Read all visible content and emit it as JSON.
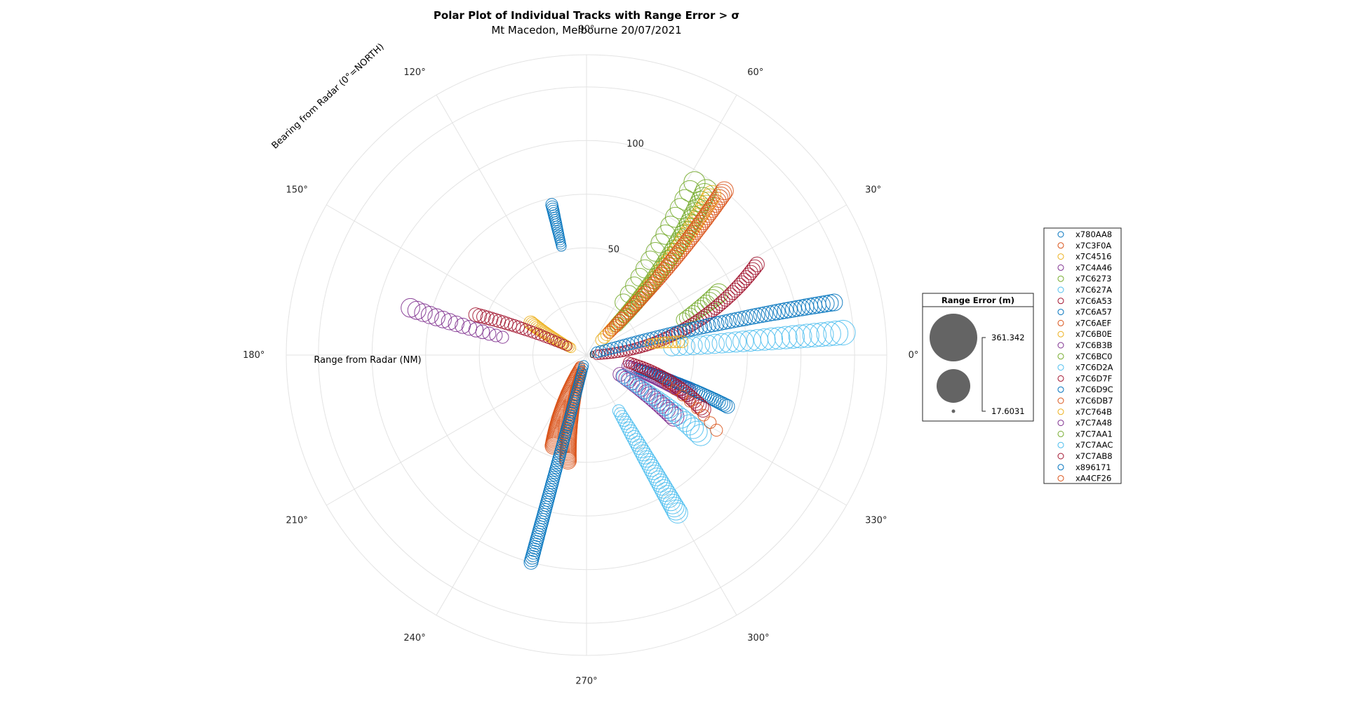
{
  "chart_data": {
    "type": "scatter",
    "subtype": "polar-bubble",
    "title": "Polar Plot of Individual Tracks with Range Error > σ",
    "subtitle": "Mt Macedon, Melbourne 20/07/2021",
    "theta_label": "Bearing from Radar (0°=NORTH)",
    "r_label": "Range from Radar (NM)",
    "theta_ticks": [
      "0°",
      "30°",
      "60°",
      "90°",
      "120°",
      "150°",
      "180°",
      "210°",
      "240°",
      "270°",
      "300°",
      "330°"
    ],
    "theta_tick_values": [
      0,
      30,
      60,
      90,
      120,
      150,
      180,
      210,
      240,
      270,
      300,
      330
    ],
    "r_ticks": [
      "0",
      "50",
      "100"
    ],
    "r_tick_values": [
      0,
      50,
      100
    ],
    "rlim": [
      0,
      140
    ],
    "grid": true,
    "legend_position": "right",
    "bubble_legend": {
      "title": "Range Error (m)",
      "max_label": "361.342",
      "min_label": "17.6031",
      "max_value": 361.342,
      "min_value": 17.6031
    },
    "series": [
      {
        "name": "x780AA8",
        "color": "#0072BD",
        "theta_start": 103,
        "theta_end": 103,
        "r_start": 52,
        "r_end": 72,
        "count": 20,
        "err_start": 40,
        "err_end": 60
      },
      {
        "name": "x7C3F0A",
        "color": "#D95319",
        "theta_start": 252,
        "theta_end": 260,
        "r_start": 8,
        "r_end": 50,
        "count": 60,
        "err_start": 40,
        "err_end": 120
      },
      {
        "name": "x7C4516",
        "color": "#EDB120",
        "theta_start": 155,
        "theta_end": 150,
        "r_start": 8,
        "r_end": 30,
        "count": 25,
        "err_start": 40,
        "err_end": 80
      },
      {
        "name": "x7C4A46",
        "color": "#7E2F8E",
        "theta_start": 345,
        "theta_end": 340,
        "r_start": 20,
        "r_end": 50,
        "count": 30,
        "err_start": 60,
        "err_end": 150
      },
      {
        "name": "x7C6273",
        "color": "#77AC30",
        "theta_start": 20,
        "theta_end": 25,
        "r_start": 48,
        "r_end": 68,
        "count": 12,
        "err_start": 80,
        "err_end": 160
      },
      {
        "name": "x7C627A",
        "color": "#4DBEEE",
        "theta_start": 300,
        "theta_end": 300,
        "r_start": 30,
        "r_end": 85,
        "count": 35,
        "err_start": 60,
        "err_end": 180
      },
      {
        "name": "x7C6A53",
        "color": "#A2142F",
        "theta_start": 155,
        "theta_end": 160,
        "r_start": 10,
        "r_end": 55,
        "count": 25,
        "err_start": 40,
        "err_end": 80
      },
      {
        "name": "x7C6A57",
        "color": "#0072BD",
        "theta_start": 345,
        "theta_end": 340,
        "r_start": 25,
        "r_end": 70,
        "count": 40,
        "err_start": 40,
        "err_end": 80
      },
      {
        "name": "x7C6AEF",
        "color": "#D95319",
        "theta_start": 240,
        "theta_end": 250,
        "r_start": 6,
        "r_end": 45,
        "count": 60,
        "err_start": 40,
        "err_end": 120
      },
      {
        "name": "x7C6B0E",
        "color": "#EDB120",
        "theta_start": 45,
        "theta_end": 52,
        "r_start": 10,
        "r_end": 95,
        "count": 50,
        "err_start": 60,
        "err_end": 140
      },
      {
        "name": "x7C6B3B",
        "color": "#7E2F8E",
        "theta_start": 168,
        "theta_end": 165,
        "r_start": 40,
        "r_end": 85,
        "count": 15,
        "err_start": 60,
        "err_end": 150
      },
      {
        "name": "x7C6BC0",
        "color": "#77AC30",
        "theta_start": 45,
        "theta_end": 54,
        "r_start": 20,
        "r_end": 95,
        "count": 40,
        "err_start": 80,
        "err_end": 200
      },
      {
        "name": "x7C6D2A",
        "color": "#4DBEEE",
        "theta_start": 5,
        "theta_end": 5,
        "r_start": 40,
        "r_end": 120,
        "count": 25,
        "err_start": 120,
        "err_end": 280
      },
      {
        "name": "x7C6D7F",
        "color": "#A2142F",
        "theta_start": 2,
        "theta_end": 28,
        "r_start": 5,
        "r_end": 90,
        "count": 60,
        "err_start": 40,
        "err_end": 90
      },
      {
        "name": "x7C6D9C",
        "color": "#0072BD",
        "theta_start": 15,
        "theta_end": 12,
        "r_start": 5,
        "r_end": 118,
        "count": 60,
        "err_start": 50,
        "err_end": 120
      },
      {
        "name": "x7C6DB7",
        "color": "#D95319",
        "theta_start": 45,
        "theta_end": 50,
        "r_start": 15,
        "r_end": 100,
        "count": 60,
        "err_start": 60,
        "err_end": 140
      },
      {
        "name": "x7C764B",
        "color": "#EDB120",
        "theta_start": 10,
        "theta_end": 8,
        "r_start": 30,
        "r_end": 45,
        "count": 10,
        "err_start": 40,
        "err_end": 60
      },
      {
        "name": "x7C7A48",
        "color": "#7E2F8E",
        "theta_start": 330,
        "theta_end": 325,
        "r_start": 18,
        "r_end": 50,
        "count": 20,
        "err_start": 80,
        "err_end": 160
      },
      {
        "name": "x7C7AA1",
        "color": "#77AC30",
        "theta_start": 55,
        "theta_end": 58,
        "r_start": 30,
        "r_end": 95,
        "count": 15,
        "err_start": 120,
        "err_end": 200
      },
      {
        "name": "x7C7AAC",
        "color": "#4DBEEE",
        "theta_start": 330,
        "theta_end": 325,
        "r_start": 20,
        "r_end": 65,
        "count": 20,
        "err_start": 80,
        "err_end": 200
      },
      {
        "name": "x7C7AB8",
        "color": "#A2142F",
        "theta_start": 350,
        "theta_end": 335,
        "r_start": 20,
        "r_end": 60,
        "count": 30,
        "err_start": 50,
        "err_end": 100
      },
      {
        "name": "x896171",
        "color": "#0072BD",
        "theta_start": 255,
        "theta_end": 255,
        "r_start": 5,
        "r_end": 100,
        "count": 80,
        "err_start": 40,
        "err_end": 80
      },
      {
        "name": "xA4CF26",
        "color": "#D95319",
        "theta_start": 340,
        "theta_end": 330,
        "r_start": 40,
        "r_end": 70,
        "count": 8,
        "err_start": 40,
        "err_end": 60
      }
    ]
  }
}
